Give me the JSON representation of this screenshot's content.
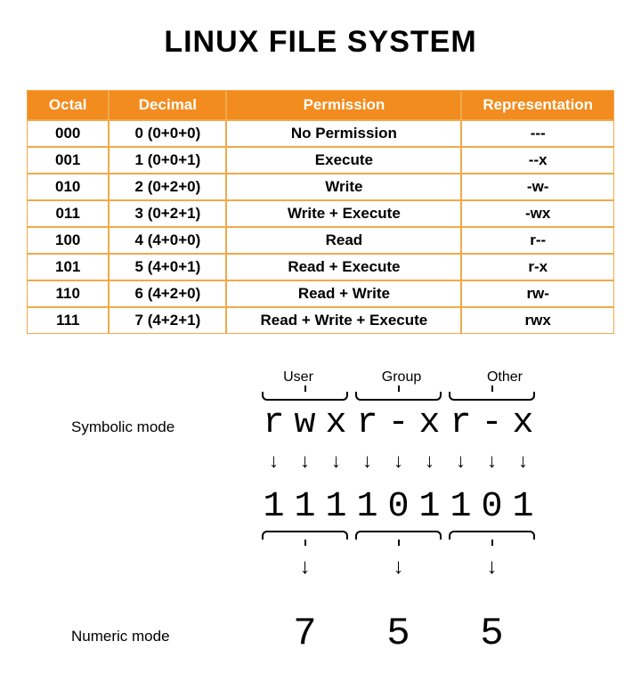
{
  "title": "LINUX FILE SYSTEM",
  "colors": {
    "header_bg": "#f28c1e",
    "header_fg": "#ffffff",
    "border": "#f2a94a",
    "background": "#ffffff"
  },
  "table": {
    "columns": [
      "Octal",
      "Decimal",
      "Permission",
      "Representation"
    ],
    "column_widths_pct": [
      14,
      20,
      40,
      26
    ],
    "header_fontsize": 17,
    "cell_fontsize": 17,
    "rows": [
      [
        "000",
        "0 (0+0+0)",
        "No Permission",
        "---"
      ],
      [
        "001",
        "1 (0+0+1)",
        "Execute",
        "--x"
      ],
      [
        "010",
        "2 (0+2+0)",
        "Write",
        "-w-"
      ],
      [
        "011",
        "3 (0+2+1)",
        "Write + Execute",
        "-wx"
      ],
      [
        "100",
        "4 (4+0+0)",
        "Read",
        "r--"
      ],
      [
        "101",
        "5 (4+0+1)",
        "Read + Execute",
        "r-x"
      ],
      [
        "110",
        "6 (4+2+0)",
        "Read + Write",
        "rw-"
      ],
      [
        "111",
        "7 (4+2+1)",
        "Read + Write + Execute",
        "rwx"
      ]
    ]
  },
  "diagram": {
    "group_labels": [
      "User",
      "Group",
      "Other"
    ],
    "symbolic_label": "Symbolic mode",
    "numeric_label": "Numeric mode",
    "symbolic_chars": [
      "r",
      "w",
      "x",
      "r",
      "-",
      "x",
      "r",
      "-",
      "x"
    ],
    "binary_chars": [
      "1",
      "1",
      "1",
      "1",
      "0",
      "1",
      "1",
      "0",
      "1"
    ],
    "numeric_chars": [
      "7",
      "5",
      "5"
    ],
    "arrow_glyph": "↓",
    "mono_font": "Courier New",
    "symbolic_fontsize": 40,
    "binary_fontsize": 40,
    "numeric_fontsize": 44,
    "label_fontsize": 17
  }
}
